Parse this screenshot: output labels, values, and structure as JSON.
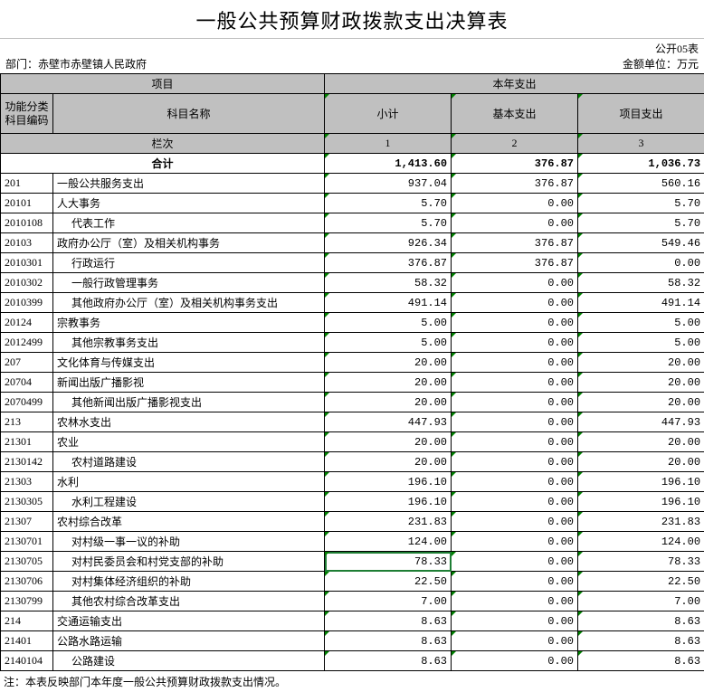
{
  "title": "一般公共预算财政拨款支出决算表",
  "form_no": "公开05表",
  "dept_label": "部门：",
  "dept_name": "赤壁市赤壁镇人民政府",
  "unit_label": "金额单位：万元",
  "headers": {
    "project": "项目",
    "expenditure": "本年支出",
    "func_code": "功能分类\n科目编码",
    "subject_name": "科目名称",
    "subtotal": "小计",
    "basic": "基本支出",
    "project_exp": "项目支出",
    "lanci": "栏次",
    "c1": "1",
    "c2": "2",
    "c3": "3",
    "total": "合计"
  },
  "totals": {
    "subtotal": "1,413.60",
    "basic": "376.87",
    "project": "1,036.73"
  },
  "rows": [
    {
      "code": "201",
      "name": "一般公共服务支出",
      "indent": 0,
      "v": [
        "937.04",
        "376.87",
        "560.16"
      ]
    },
    {
      "code": "20101",
      "name": "人大事务",
      "indent": 0,
      "v": [
        "5.70",
        "0.00",
        "5.70"
      ]
    },
    {
      "code": "2010108",
      "name": "代表工作",
      "indent": 1,
      "v": [
        "5.70",
        "0.00",
        "5.70"
      ]
    },
    {
      "code": "20103",
      "name": "政府办公厅（室）及相关机构事务",
      "indent": 0,
      "v": [
        "926.34",
        "376.87",
        "549.46"
      ]
    },
    {
      "code": "2010301",
      "name": "行政运行",
      "indent": 1,
      "v": [
        "376.87",
        "376.87",
        "0.00"
      ]
    },
    {
      "code": "2010302",
      "name": "一般行政管理事务",
      "indent": 1,
      "v": [
        "58.32",
        "0.00",
        "58.32"
      ]
    },
    {
      "code": "2010399",
      "name": "其他政府办公厅（室）及相关机构事务支出",
      "indent": 1,
      "v": [
        "491.14",
        "0.00",
        "491.14"
      ]
    },
    {
      "code": "20124",
      "name": "宗教事务",
      "indent": 0,
      "v": [
        "5.00",
        "0.00",
        "5.00"
      ]
    },
    {
      "code": "2012499",
      "name": "其他宗教事务支出",
      "indent": 1,
      "v": [
        "5.00",
        "0.00",
        "5.00"
      ]
    },
    {
      "code": "207",
      "name": "文化体育与传媒支出",
      "indent": 0,
      "v": [
        "20.00",
        "0.00",
        "20.00"
      ]
    },
    {
      "code": "20704",
      "name": "新闻出版广播影视",
      "indent": 0,
      "v": [
        "20.00",
        "0.00",
        "20.00"
      ]
    },
    {
      "code": "2070499",
      "name": "其他新闻出版广播影视支出",
      "indent": 1,
      "v": [
        "20.00",
        "0.00",
        "20.00"
      ]
    },
    {
      "code": "213",
      "name": "农林水支出",
      "indent": 0,
      "v": [
        "447.93",
        "0.00",
        "447.93"
      ]
    },
    {
      "code": "21301",
      "name": "农业",
      "indent": 0,
      "v": [
        "20.00",
        "0.00",
        "20.00"
      ]
    },
    {
      "code": "2130142",
      "name": "农村道路建设",
      "indent": 1,
      "v": [
        "20.00",
        "0.00",
        "20.00"
      ]
    },
    {
      "code": "21303",
      "name": "水利",
      "indent": 0,
      "v": [
        "196.10",
        "0.00",
        "196.10"
      ]
    },
    {
      "code": "2130305",
      "name": "水利工程建设",
      "indent": 1,
      "v": [
        "196.10",
        "0.00",
        "196.10"
      ]
    },
    {
      "code": "21307",
      "name": "农村综合改革",
      "indent": 0,
      "v": [
        "231.83",
        "0.00",
        "231.83"
      ]
    },
    {
      "code": "2130701",
      "name": "对村级一事一议的补助",
      "indent": 1,
      "v": [
        "124.00",
        "0.00",
        "124.00"
      ]
    },
    {
      "code": "2130705",
      "name": "对村民委员会和村党支部的补助",
      "indent": 1,
      "v": [
        "78.33",
        "0.00",
        "78.33"
      ],
      "active": true
    },
    {
      "code": "2130706",
      "name": "对村集体经济组织的补助",
      "indent": 1,
      "v": [
        "22.50",
        "0.00",
        "22.50"
      ]
    },
    {
      "code": "2130799",
      "name": "其他农村综合改革支出",
      "indent": 1,
      "v": [
        "7.00",
        "0.00",
        "7.00"
      ]
    },
    {
      "code": "214",
      "name": "交通运输支出",
      "indent": 0,
      "v": [
        "8.63",
        "0.00",
        "8.63"
      ]
    },
    {
      "code": "21401",
      "name": "公路水路运输",
      "indent": 0,
      "v": [
        "8.63",
        "0.00",
        "8.63"
      ]
    },
    {
      "code": "2140104",
      "name": "公路建设",
      "indent": 1,
      "v": [
        "8.63",
        "0.00",
        "8.63"
      ]
    }
  ],
  "footnote": "注：本表反映部门本年度一般公共预算财政拨款支出情况。",
  "colors": {
    "header_bg": "#c0c0c0",
    "border": "#000000",
    "active_border": "#1e7e34",
    "tri": "#008000",
    "background": "#ffffff"
  }
}
